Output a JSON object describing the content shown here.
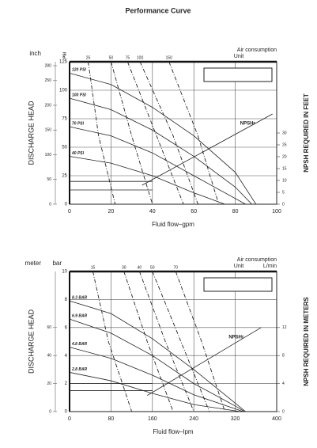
{
  "title": "Performance Curve",
  "chart_data": [
    {
      "type": "line",
      "xlabel": "Fluid flow–gpm",
      "ylabel": "DISCHARGE HEAD",
      "y2label": "NPSH REQUIRED IN FEET",
      "outer_label": "inch",
      "inner_label": "PSI",
      "top_label": "Air consumption",
      "unit_label": "Unit",
      "xlim": [
        0,
        100
      ],
      "xticks": [
        0,
        20,
        40,
        60,
        80,
        100
      ],
      "ylim": [
        0,
        125
      ],
      "yticks": [
        0,
        25,
        50,
        75,
        100,
        125
      ],
      "outer_ylim": [
        0,
        288
      ],
      "outer_yticks": [
        0,
        50,
        100,
        150,
        200,
        250,
        280
      ],
      "y2lim": [
        0,
        60
      ],
      "y2ticks": [
        0,
        5,
        10,
        15,
        20,
        25,
        30
      ],
      "grid": true,
      "series": [
        {
          "name": "120 PSI",
          "x": [
            0,
            20,
            40,
            60,
            80,
            90
          ],
          "values": [
            115,
            105,
            85,
            60,
            28,
            0
          ]
        },
        {
          "name": "100 PSI",
          "x": [
            0,
            20,
            40,
            60,
            80,
            88
          ],
          "values": [
            93,
            83,
            65,
            42,
            15,
            0
          ]
        },
        {
          "name": "70 PSI",
          "x": [
            0,
            20,
            40,
            60,
            85
          ],
          "values": [
            68,
            60,
            45,
            25,
            0
          ]
        },
        {
          "name": "40 PSI",
          "x": [
            0,
            20,
            40,
            60,
            75
          ],
          "values": [
            42,
            36,
            25,
            10,
            0
          ]
        },
        {
          "label": "25",
          "dash": true,
          "x": [
            9,
            14,
            22
          ],
          "values": [
            125,
            60,
            0
          ]
        },
        {
          "label": "50",
          "dash": true,
          "x": [
            20,
            30,
            40
          ],
          "values": [
            125,
            60,
            0
          ]
        },
        {
          "label": "75",
          "dash": true,
          "x": [
            28,
            42,
            55
          ],
          "values": [
            125,
            60,
            0
          ]
        },
        {
          "label": "100",
          "dash": true,
          "x": [
            34,
            50,
            62
          ],
          "values": [
            125,
            60,
            0
          ]
        },
        {
          "label": "150",
          "dash": true,
          "x": [
            48,
            62,
            72
          ],
          "values": [
            125,
            60,
            0
          ]
        },
        {
          "x": [
            0,
            40
          ],
          "values": [
            20,
            20
          ]
        },
        {
          "x": [
            0,
            40
          ],
          "values": [
            12.5,
            12.5
          ]
        },
        {
          "name": "NPSHr",
          "axis": "y2",
          "x": [
            35,
            98
          ],
          "values": [
            8,
            38
          ]
        }
      ]
    },
    {
      "type": "line",
      "xlabel": "Fluid flow–lpm",
      "ylabel": "DISCHARGE HEAD",
      "y2label": "NPSH REQUIRED IN METERS",
      "outer_label": "meter",
      "inner_label": "bar",
      "top_label": "Air consumption",
      "unit_label": "Unit",
      "top_unit": "L/min",
      "xlim": [
        0,
        400
      ],
      "xticks": [
        0,
        80,
        160,
        240,
        320,
        400
      ],
      "ylim": [
        0,
        10
      ],
      "yticks": [
        0,
        2,
        4,
        6,
        8,
        10
      ],
      "outer_ylim": [
        0,
        100
      ],
      "outer_yticks": [
        0,
        20,
        40,
        60
      ],
      "y2lim": [
        0,
        20
      ],
      "y2ticks": [
        0,
        4,
        8,
        12
      ],
      "grid": true,
      "series": [
        {
          "name": "8.3 BAR",
          "x": [
            0,
            80,
            160,
            240,
            320,
            340
          ],
          "values": [
            7.9,
            7.0,
            5.2,
            3.0,
            0.6,
            0
          ]
        },
        {
          "name": "6.9 BAR",
          "x": [
            0,
            80,
            160,
            240,
            320,
            338
          ],
          "values": [
            6.6,
            5.6,
            4.0,
            2.0,
            0.4,
            0
          ]
        },
        {
          "name": "4.8 BAR",
          "x": [
            0,
            80,
            160,
            240,
            320,
            335
          ],
          "values": [
            4.6,
            3.8,
            2.6,
            1.2,
            0.2,
            0
          ]
        },
        {
          "name": "2.8 BAR",
          "x": [
            0,
            80,
            160,
            240,
            330
          ],
          "values": [
            2.8,
            2.2,
            1.3,
            0.5,
            0
          ]
        },
        {
          "label": "15",
          "dash": true,
          "x": [
            45,
            75,
            120
          ],
          "values": [
            10,
            5,
            0
          ]
        },
        {
          "label": "30",
          "dash": true,
          "x": [
            105,
            150,
            200
          ],
          "values": [
            10,
            5,
            0
          ]
        },
        {
          "label": "40",
          "dash": true,
          "x": [
            135,
            185,
            240
          ],
          "values": [
            10,
            5,
            0
          ]
        },
        {
          "label": "50",
          "dash": true,
          "x": [
            160,
            215,
            270
          ],
          "values": [
            10,
            5,
            0
          ]
        },
        {
          "label": "70",
          "dash": true,
          "x": [
            205,
            255,
            300
          ],
          "values": [
            10,
            5,
            0
          ]
        },
        {
          "x": [
            0,
            160
          ],
          "values": [
            2,
            2
          ]
        },
        {
          "x": [
            0,
            160
          ],
          "values": [
            1.5,
            1.5
          ]
        },
        {
          "name": "NPSHr",
          "axis": "y2",
          "x": [
            150,
            370
          ],
          "values": [
            2.3,
            12
          ]
        }
      ]
    }
  ]
}
